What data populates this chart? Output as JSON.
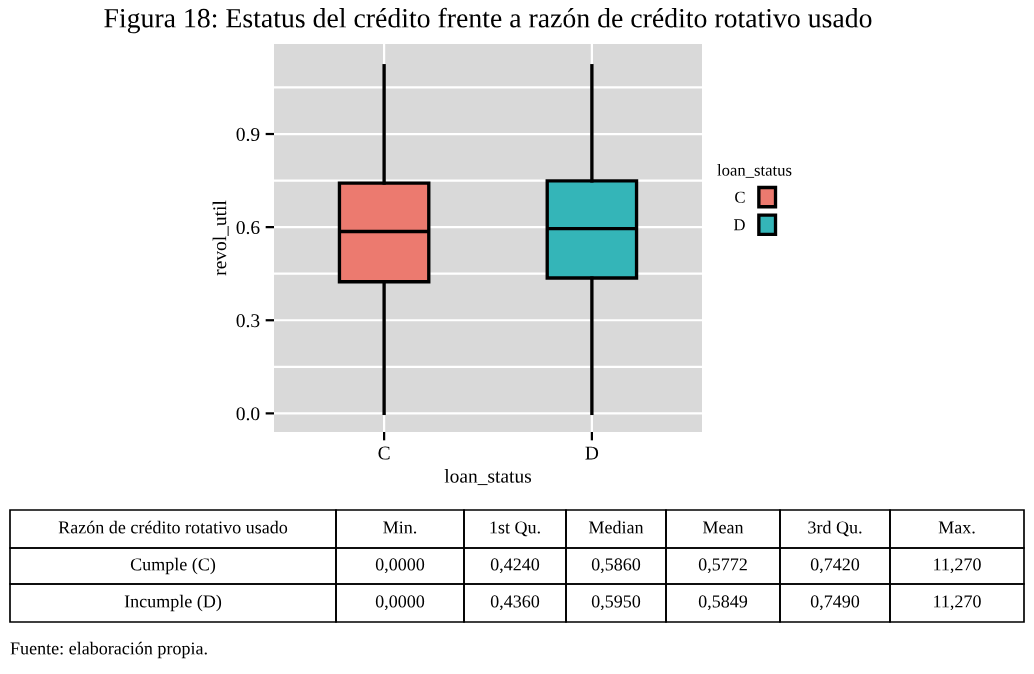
{
  "chart_data": {
    "type": "box",
    "title": "Figura 18: Estatus del crédito frente a razón de crédito rotativo usado",
    "xlabel": "loan_status",
    "ylabel": "revol_util",
    "legend_title": "loan_status",
    "legend": "right",
    "grid": true,
    "categories": [
      "C",
      "D"
    ],
    "series": [
      {
        "name": "C",
        "color": "#ec7a6f",
        "boxes": [
          {
            "low": 0.0,
            "q1": 0.424,
            "median": 0.586,
            "q3": 0.742,
            "high": 1.12
          },
          null
        ]
      },
      {
        "name": "D",
        "color": "#34b5b8",
        "boxes": [
          null,
          {
            "low": 0.0,
            "q1": 0.436,
            "median": 0.595,
            "q3": 0.749,
            "high": 1.12
          }
        ]
      }
    ],
    "ylim": [
      -0.06,
      1.19
    ],
    "yticks": [
      {
        "value": 0.0,
        "label": "0.0"
      },
      {
        "value": 0.15,
        "label": null
      },
      0.3,
      {
        "value": 0.45,
        "label": null
      },
      0.6,
      {
        "value": 0.75,
        "label": null
      },
      0.9,
      {
        "value": 1.05,
        "label": null
      }
    ],
    "annotations": [
      "Razón de crédito rotativo usado",
      "Min.",
      "1st Qu.",
      "Median",
      "Mean",
      "3rd Qu.",
      "Max.",
      "Cumple (C)",
      "0,0000",
      "0,4240",
      "0,5860",
      "0,5772",
      "0,7420",
      "11,270",
      "Incumple (D)",
      "0,0000",
      "0,4360",
      "0,5950",
      "0,5849",
      "0,7490",
      "11,270",
      "Fuente: elaboración propia."
    ]
  }
}
